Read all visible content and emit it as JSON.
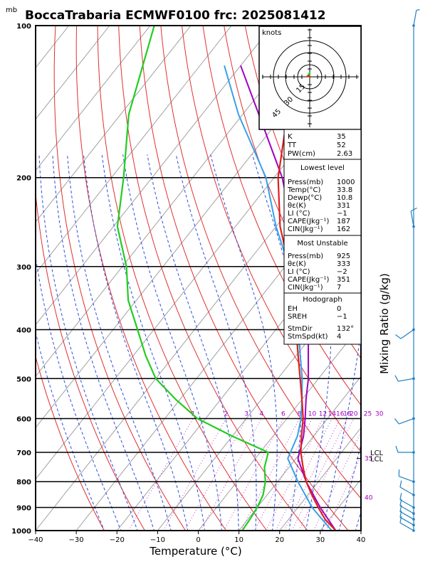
{
  "title": "BoccaTrabaria ECMWF0100 frc: 2025081412",
  "pressure_unit": "mb",
  "x_axis_label": "Temperature (°C)",
  "right_axis_label": "Mixing Ratio (g/kg)",
  "hodograph": {
    "label": "knots",
    "ring_labels": [
      "15",
      "30",
      "45"
    ]
  },
  "indices": {
    "top": [
      [
        "K",
        "35"
      ],
      [
        "TT",
        "52"
      ],
      [
        "PW(cm)",
        "2.63"
      ]
    ],
    "lowest_level": {
      "header": "Lowest level",
      "rows": [
        [
          "Press(mb)",
          "1000"
        ],
        [
          "Temp(°C)",
          "33.8"
        ],
        [
          "Dewp(°C)",
          "10.8"
        ],
        [
          "θε(K)",
          "331"
        ],
        [
          "LI (°C)",
          "−1"
        ],
        [
          "CAPE(Jkg⁻¹)",
          "187"
        ],
        [
          "CIN(Jkg⁻¹)",
          "162"
        ]
      ]
    },
    "most_unstable": {
      "header": "Most Unstable",
      "rows": [
        [
          "Press(mb)",
          "925"
        ],
        [
          "θε(K)",
          "333"
        ],
        [
          "LI (°C)",
          "−2"
        ],
        [
          "CAPE(Jkg⁻¹)",
          "351"
        ],
        [
          "CIN(Jkg⁻¹)",
          "7"
        ]
      ]
    },
    "hodograph": {
      "header": "Hodograph",
      "rows": [
        [
          "EH",
          "0"
        ],
        [
          "SREH",
          "−1"
        ],
        [
          "StmDir",
          "132°"
        ],
        [
          "StmSpd(kt)",
          "4"
        ]
      ]
    }
  },
  "chart_data": {
    "type": "line",
    "chart_kind": "skew-T log-P",
    "xlim": [
      -40,
      40
    ],
    "x_ticks": [
      -40,
      -30,
      -20,
      -10,
      0,
      10,
      20,
      30,
      40
    ],
    "x_tick_labels": [
      "−40",
      "−30",
      "−20",
      "−10",
      "0",
      "10",
      "20",
      "30",
      "40"
    ],
    "ylim": [
      1000,
      100
    ],
    "y_ticks": [
      1000,
      900,
      800,
      700,
      600,
      500,
      400,
      300,
      200,
      100
    ],
    "mixing_ratio_labels": [
      "1",
      "2",
      "3",
      "4",
      "6",
      "8",
      "10",
      "12",
      "14",
      "16",
      "18",
      "20",
      "25",
      "30"
    ],
    "mixing_ratio_values": [
      1,
      2,
      3,
      4,
      6,
      8,
      10,
      12,
      14,
      16,
      18,
      20,
      25,
      30
    ],
    "lcl_labels": [
      "LCL",
      "LCL"
    ],
    "lcl_pressures": [
      700,
      720
    ],
    "side_labels": [
      "35",
      "40"
    ],
    "colors": {
      "temperature": "#dd2020",
      "dewpoint": "#22cc22",
      "parcel": "#a000c0",
      "virtual": "#3aa0e8",
      "isotherm": "#a0a0a0",
      "dry_adiabat": "#e03030",
      "moist_adiabat": "#3050e0",
      "mixing_ratio": "#c040c0",
      "wind": "#2080c0"
    },
    "series": [
      {
        "name": "",
        "key": "temperature",
        "points": [
          [
            1000,
            33.8
          ],
          [
            950,
            29
          ],
          [
            900,
            25
          ],
          [
            850,
            21
          ],
          [
            800,
            17
          ],
          [
            750,
            13.5
          ],
          [
            700,
            10
          ],
          [
            650,
            7
          ],
          [
            600,
            4
          ],
          [
            550,
            0
          ],
          [
            500,
            -4.5
          ],
          [
            450,
            -9.5
          ],
          [
            400,
            -15
          ],
          [
            350,
            -21
          ],
          [
            300,
            -29
          ],
          [
            250,
            -39
          ],
          [
            200,
            -49
          ],
          [
            150,
            -59
          ],
          [
            100,
            -64
          ]
        ]
      },
      {
        "name": "",
        "key": "dewpoint",
        "points": [
          [
            1000,
            10.8
          ],
          [
            950,
            10.5
          ],
          [
            900,
            10
          ],
          [
            850,
            9
          ],
          [
            800,
            7
          ],
          [
            750,
            4
          ],
          [
            700,
            2
          ],
          [
            650,
            -10
          ],
          [
            600,
            -22
          ],
          [
            550,
            -31
          ],
          [
            500,
            -40
          ],
          [
            450,
            -47
          ],
          [
            400,
            -54
          ],
          [
            350,
            -62
          ],
          [
            300,
            -69
          ],
          [
            250,
            -79
          ],
          [
            200,
            -87
          ],
          [
            150,
            -98
          ],
          [
            100,
            -109
          ]
        ]
      },
      {
        "name": "",
        "key": "parcel",
        "points": [
          [
            1000,
            33.8
          ],
          [
            900,
            25.5
          ],
          [
            800,
            17
          ],
          [
            720,
            10.5
          ],
          [
            650,
            7.5
          ],
          [
            600,
            4.5
          ],
          [
            550,
            1
          ],
          [
            500,
            -2.5
          ],
          [
            450,
            -7
          ],
          [
            400,
            -12
          ],
          [
            350,
            -18
          ],
          [
            300,
            -26
          ],
          [
            250,
            -36
          ],
          [
            200,
            -48
          ],
          [
            150,
            -66
          ],
          [
            120,
            -80
          ]
        ]
      },
      {
        "name": "",
        "key": "virtual",
        "points": [
          [
            1000,
            32.8
          ],
          [
            900,
            23.5
          ],
          [
            800,
            15
          ],
          [
            720,
            8
          ],
          [
            650,
            6
          ],
          [
            600,
            3.5
          ],
          [
            550,
            0
          ],
          [
            500,
            -4
          ],
          [
            450,
            -9
          ],
          [
            400,
            -14.5
          ],
          [
            350,
            -21
          ],
          [
            300,
            -29
          ],
          [
            250,
            -40
          ],
          [
            200,
            -52
          ],
          [
            150,
            -71
          ],
          [
            120,
            -84
          ]
        ]
      }
    ],
    "wind_barbs": [
      {
        "p": 1000,
        "dir": 300,
        "spd": 10
      },
      {
        "p": 975,
        "dir": 300,
        "spd": 10
      },
      {
        "p": 950,
        "dir": 300,
        "spd": 10
      },
      {
        "p": 925,
        "dir": 300,
        "spd": 10
      },
      {
        "p": 900,
        "dir": 300,
        "spd": 10
      },
      {
        "p": 850,
        "dir": 300,
        "spd": 10
      },
      {
        "p": 800,
        "dir": 290,
        "spd": 10
      },
      {
        "p": 700,
        "dir": 270,
        "spd": 10
      },
      {
        "p": 600,
        "dir": 250,
        "spd": 10
      },
      {
        "p": 500,
        "dir": 260,
        "spd": 10
      },
      {
        "p": 400,
        "dir": 235,
        "spd": 10
      },
      {
        "p": 250,
        "dir": 350,
        "spd": 10
      },
      {
        "p": 100,
        "dir": 10,
        "spd": 5
      }
    ]
  }
}
